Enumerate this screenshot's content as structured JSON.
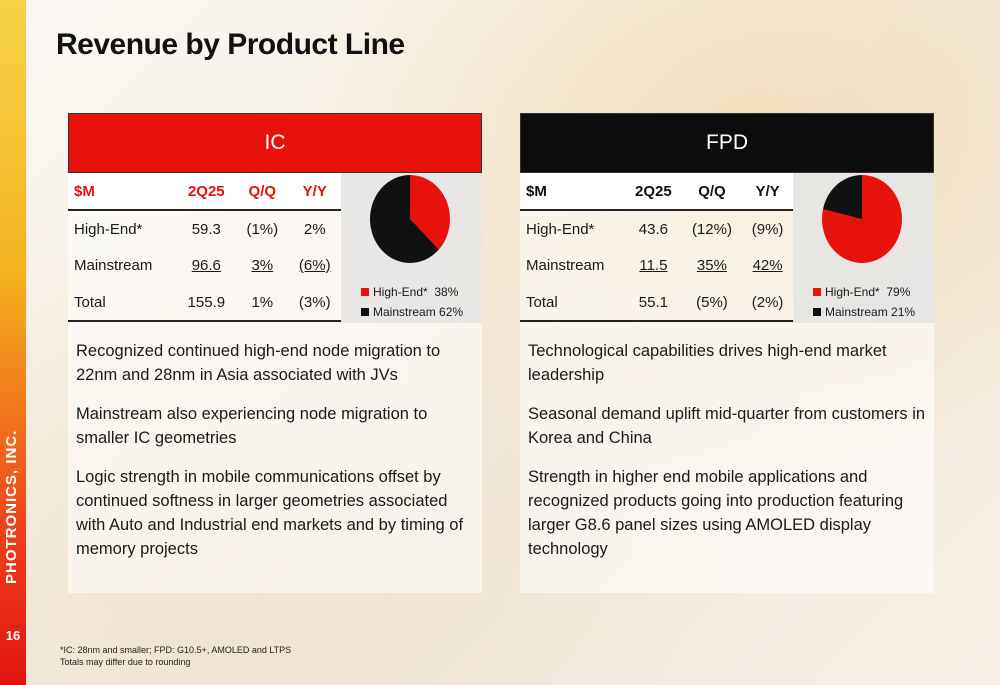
{
  "brand": "PHOTRONICS, INC.",
  "page_number": "16",
  "title": "Revenue by Product Line",
  "colors": {
    "accent_red": "#e8120c",
    "dark": "#0c0c0c"
  },
  "panels": [
    {
      "header": "IC",
      "columns": [
        "$M",
        "2Q25",
        "Q/Q",
        "Y/Y"
      ],
      "rows": [
        {
          "label": "High-End*",
          "q": "59.3",
          "qq": "(1%)",
          "yy": "2%"
        },
        {
          "label": "Mainstream",
          "q": "96.6",
          "qq": "3%",
          "yy": "(6%)"
        },
        {
          "label": "Total",
          "q": "155.9",
          "qq": "1%",
          "yy": "(3%)"
        }
      ],
      "pie": {
        "high_end_label": "High-End*",
        "high_end_value": "38%",
        "high_end_pct": 38,
        "mainstream_label": "Mainstream",
        "mainstream_value": "62%",
        "mainstream_pct": 62
      },
      "bullets": [
        "Recognized continued high-end node migration to 22nm and 28nm in Asia associated with JVs",
        "Mainstream also experiencing node migration to smaller IC geometries",
        "Logic strength in mobile communications offset by continued softness in larger geometries associated with Auto and Industrial end markets and by timing of memory projects"
      ]
    },
    {
      "header": "FPD",
      "columns": [
        "$M",
        "2Q25",
        "Q/Q",
        "Y/Y"
      ],
      "rows": [
        {
          "label": "High-End*",
          "q": "43.6",
          "qq": "(12%)",
          "yy": "(9%)"
        },
        {
          "label": "Mainstream",
          "q": "11.5",
          "qq": "35%",
          "yy": "42%"
        },
        {
          "label": "Total",
          "q": "55.1",
          "qq": "(5%)",
          "yy": "(2%)"
        }
      ],
      "pie": {
        "high_end_label": "High-End*",
        "high_end_value": "79%",
        "high_end_pct": 79,
        "mainstream_label": "Mainstream",
        "mainstream_value": "21%",
        "mainstream_pct": 21
      },
      "bullets": [
        "Technological capabilities drives high-end market leadership",
        "Seasonal demand uplift mid-quarter from customers in Korea and China",
        "Strength in higher end mobile applications and recognized products going into production featuring larger G8.6 panel sizes using AMOLED display technology"
      ]
    }
  ],
  "footnote": {
    "line1": "*IC: 28nm and smaller; FPD: G10.5+, AMOLED and LTPS",
    "line2": "Totals may differ due to rounding"
  }
}
